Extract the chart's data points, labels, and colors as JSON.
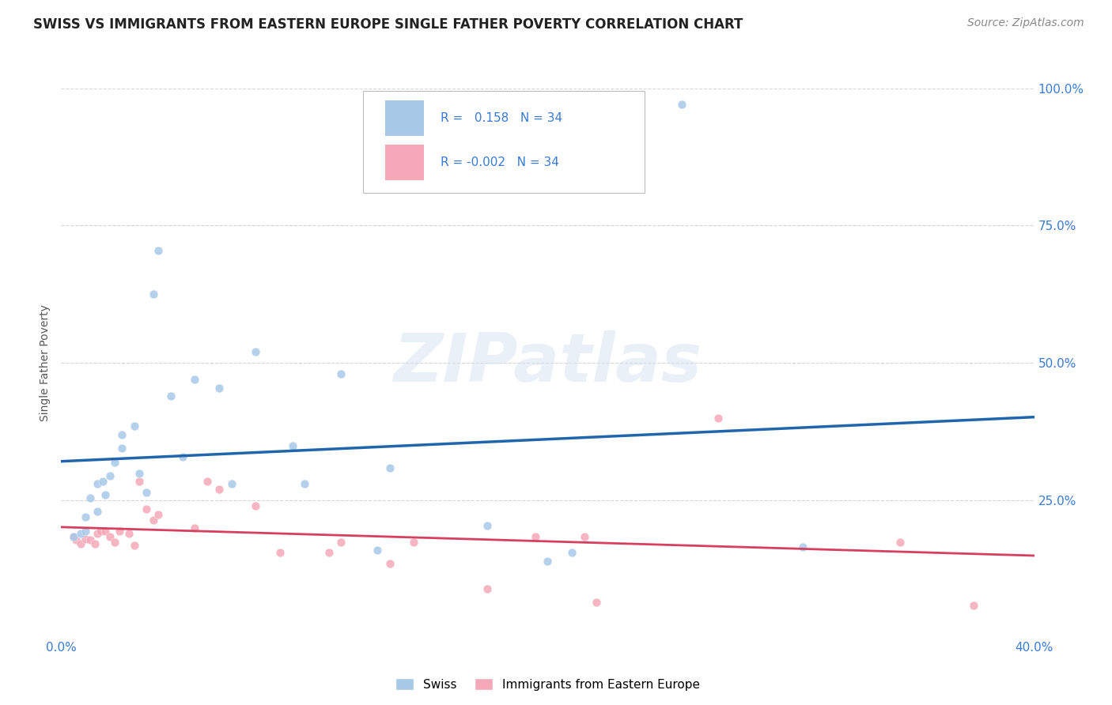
{
  "title": "SWISS VS IMMIGRANTS FROM EASTERN EUROPE SINGLE FATHER POVERTY CORRELATION CHART",
  "source": "Source: ZipAtlas.com",
  "ylabel": "Single Father Poverty",
  "xmin": 0.0,
  "xmax": 0.4,
  "ymin": 0.0,
  "ymax": 1.0,
  "swiss_R": 0.158,
  "swiss_N": 34,
  "imm_R": -0.002,
  "imm_N": 34,
  "swiss_color": "#a8c8e8",
  "imm_color": "#f4a8b8",
  "trendline_swiss_color": "#2166ac",
  "trendline_imm_color": "#d64060",
  "axis_label_color": "#3a7bd5",
  "watermark": "ZIPatlas",
  "swiss_x": [
    0.005,
    0.008,
    0.01,
    0.01,
    0.012,
    0.015,
    0.015,
    0.017,
    0.018,
    0.02,
    0.022,
    0.025,
    0.025,
    0.03,
    0.032,
    0.035,
    0.038,
    0.04,
    0.045,
    0.05,
    0.055,
    0.065,
    0.07,
    0.08,
    0.095,
    0.1,
    0.115,
    0.13,
    0.135,
    0.175,
    0.2,
    0.21,
    0.255,
    0.305
  ],
  "swiss_y": [
    0.185,
    0.19,
    0.195,
    0.22,
    0.255,
    0.23,
    0.28,
    0.285,
    0.26,
    0.295,
    0.32,
    0.345,
    0.37,
    0.385,
    0.3,
    0.265,
    0.625,
    0.705,
    0.44,
    0.33,
    0.47,
    0.455,
    0.28,
    0.52,
    0.35,
    0.28,
    0.48,
    0.16,
    0.31,
    0.205,
    0.14,
    0.155,
    0.97,
    0.165
  ],
  "imm_x": [
    0.005,
    0.006,
    0.008,
    0.01,
    0.012,
    0.014,
    0.015,
    0.016,
    0.018,
    0.02,
    0.022,
    0.024,
    0.028,
    0.03,
    0.032,
    0.035,
    0.038,
    0.04,
    0.055,
    0.06,
    0.065,
    0.08,
    0.09,
    0.11,
    0.115,
    0.135,
    0.145,
    0.175,
    0.195,
    0.215,
    0.22,
    0.27,
    0.345,
    0.375
  ],
  "imm_y": [
    0.185,
    0.178,
    0.172,
    0.18,
    0.178,
    0.172,
    0.19,
    0.195,
    0.195,
    0.185,
    0.175,
    0.195,
    0.19,
    0.168,
    0.285,
    0.235,
    0.215,
    0.225,
    0.2,
    0.285,
    0.27,
    0.24,
    0.155,
    0.155,
    0.175,
    0.135,
    0.175,
    0.09,
    0.185,
    0.185,
    0.065,
    0.4,
    0.175,
    0.06
  ],
  "swiss_marker_size": 60,
  "imm_marker_size": 60,
  "background_color": "#ffffff",
  "grid_color": "#cccccc",
  "title_fontsize": 12,
  "label_fontsize": 10,
  "tick_fontsize": 11
}
